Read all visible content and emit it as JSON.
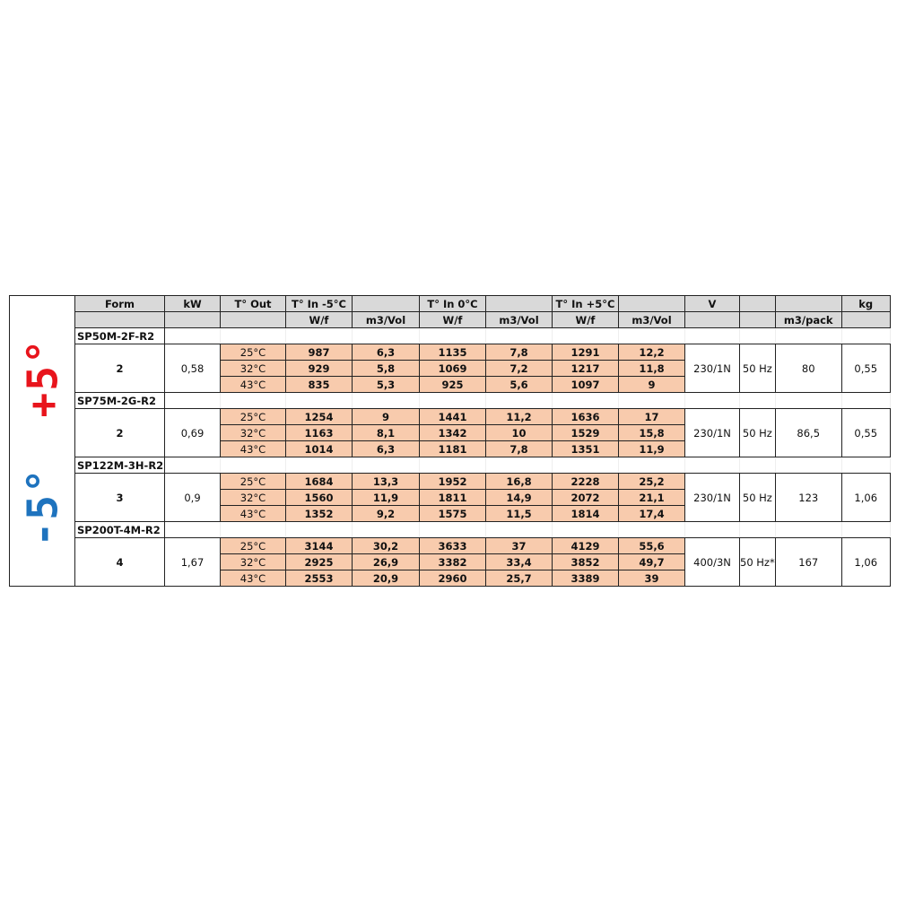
{
  "badges": {
    "hot": "+5°",
    "cold": "-5°",
    "hot_color": "#e8141c",
    "cold_color": "#1e73be"
  },
  "header": {
    "row1": [
      "Form",
      "kW",
      "T° Out",
      "T° In -5°C",
      "",
      "T° In 0°C",
      "",
      "T° In +5°C",
      "",
      "V",
      "",
      "",
      "kg"
    ],
    "row2": [
      "",
      "",
      "",
      "W/f",
      "m3/Vol",
      "W/f",
      "m3/Vol",
      "W/f",
      "m3/Vol",
      "",
      "",
      "m3/pack",
      ""
    ]
  },
  "models": [
    {
      "name": "SP50M-2F-R2",
      "form": "2",
      "kw": "0,58",
      "v": "230/1N",
      "hz": "50 Hz",
      "pack": "80",
      "kg": "0,55",
      "rows": [
        [
          "25°C",
          "987",
          "6,3",
          "1135",
          "7,8",
          "1291",
          "12,2"
        ],
        [
          "32°C",
          "929",
          "5,8",
          "1069",
          "7,2",
          "1217",
          "11,8"
        ],
        [
          "43°C",
          "835",
          "5,3",
          "925",
          "5,6",
          "1097",
          "9"
        ]
      ]
    },
    {
      "name": "SP75M-2G-R2",
      "form": "2",
      "kw": "0,69",
      "v": "230/1N",
      "hz": "50 Hz",
      "pack": "86,5",
      "kg": "0,55",
      "rows": [
        [
          "25°C",
          "1254",
          "9",
          "1441",
          "11,2",
          "1636",
          "17"
        ],
        [
          "32°C",
          "1163",
          "8,1",
          "1342",
          "10",
          "1529",
          "15,8"
        ],
        [
          "43°C",
          "1014",
          "6,3",
          "1181",
          "7,8",
          "1351",
          "11,9"
        ]
      ]
    },
    {
      "name": "SP122M-3H-R2",
      "form": "3",
      "kw": "0,9",
      "v": "230/1N",
      "hz": "50 Hz",
      "pack": "123",
      "kg": "1,06",
      "rows": [
        [
          "25°C",
          "1684",
          "13,3",
          "1952",
          "16,8",
          "2228",
          "25,2"
        ],
        [
          "32°C",
          "1560",
          "11,9",
          "1811",
          "14,9",
          "2072",
          "21,1"
        ],
        [
          "43°C",
          "1352",
          "9,2",
          "1575",
          "11,5",
          "1814",
          "17,4"
        ]
      ]
    },
    {
      "name": "SP200T-4M-R2",
      "form": "4",
      "kw": "1,67",
      "v": "400/3N",
      "hz": "50 Hz*",
      "pack": "167",
      "kg": "1,06",
      "rows": [
        [
          "25°C",
          "3144",
          "30,2",
          "3633",
          "37",
          "4129",
          "55,6"
        ],
        [
          "32°C",
          "2925",
          "26,9",
          "3382",
          "33,4",
          "3852",
          "49,7"
        ],
        [
          "43°C",
          "2553",
          "20,9",
          "2960",
          "25,7",
          "3389",
          "39"
        ]
      ]
    }
  ]
}
